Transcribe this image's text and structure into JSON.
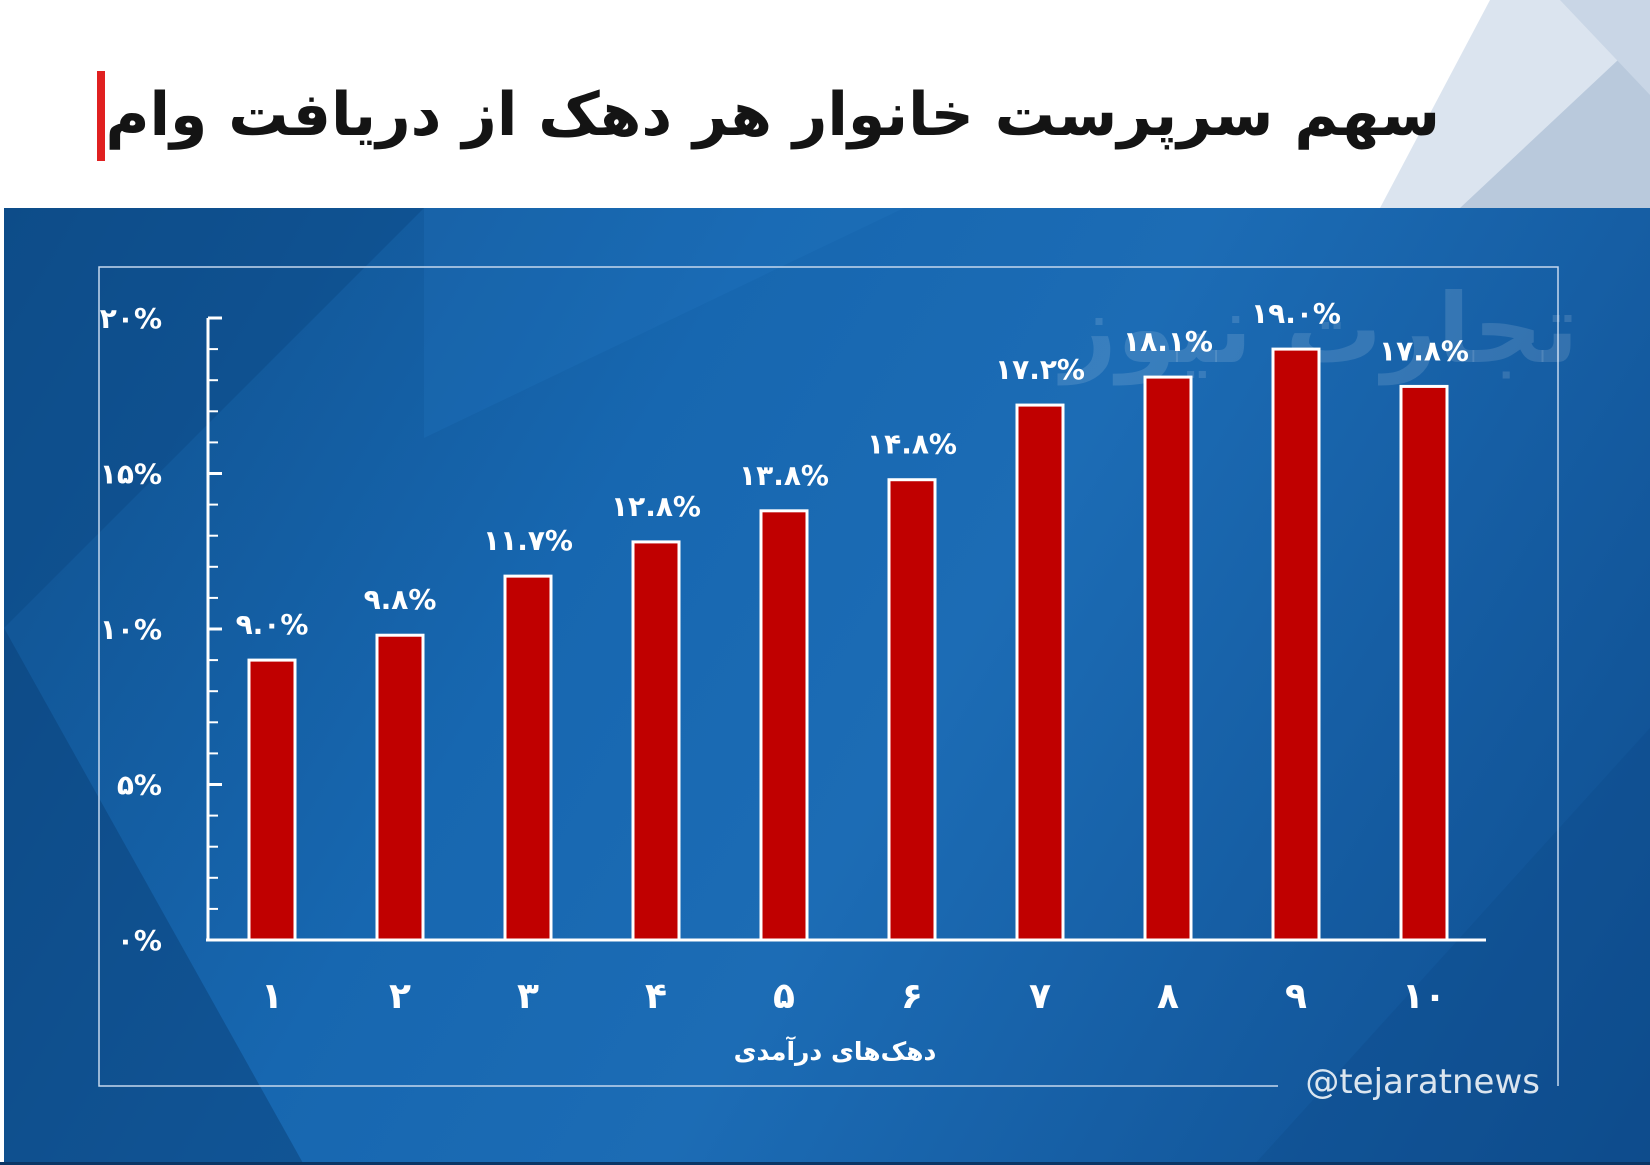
{
  "header": {
    "title": "سهم سرپرست خانوار هر دهک از دریافت وام",
    "accent_color": "#e02020"
  },
  "footer": {
    "handle": "@tejaratnews"
  },
  "watermark": {
    "text": "تجارت نیوز"
  },
  "colors": {
    "bar": "#c00000",
    "panel": "#1767b0",
    "axis": "#ffffff",
    "text": "#ffffff"
  },
  "chart_data": {
    "type": "bar",
    "categories": [
      "۱",
      "۲",
      "۳",
      "۴",
      "۵",
      "۶",
      "۷",
      "۸",
      "۹",
      "۱۰"
    ],
    "values": [
      9.0,
      9.8,
      11.7,
      12.8,
      13.8,
      14.8,
      17.2,
      18.1,
      19.0,
      17.8
    ],
    "value_labels": [
      "۹.۰%",
      "۹.۸%",
      "۱۱.۷%",
      "۱۲.۸%",
      "۱۳.۸%",
      "۱۴.۸%",
      "۱۷.۲%",
      "۱۸.۱%",
      "۱۹.۰%",
      "۱۷.۸%"
    ],
    "title": "سهم سرپرست خانوار هر دهک از دریافت وام",
    "xlabel": "دهک‌های درآمدی",
    "ylabel": "",
    "ylim": [
      0,
      20
    ],
    "y_ticks": [
      0,
      5,
      10,
      15,
      20
    ],
    "y_tick_labels": [
      "۰%",
      "۵%",
      "۱۰%",
      "۱۵%",
      "۲۰%"
    ],
    "grid": false,
    "legend": "none"
  }
}
